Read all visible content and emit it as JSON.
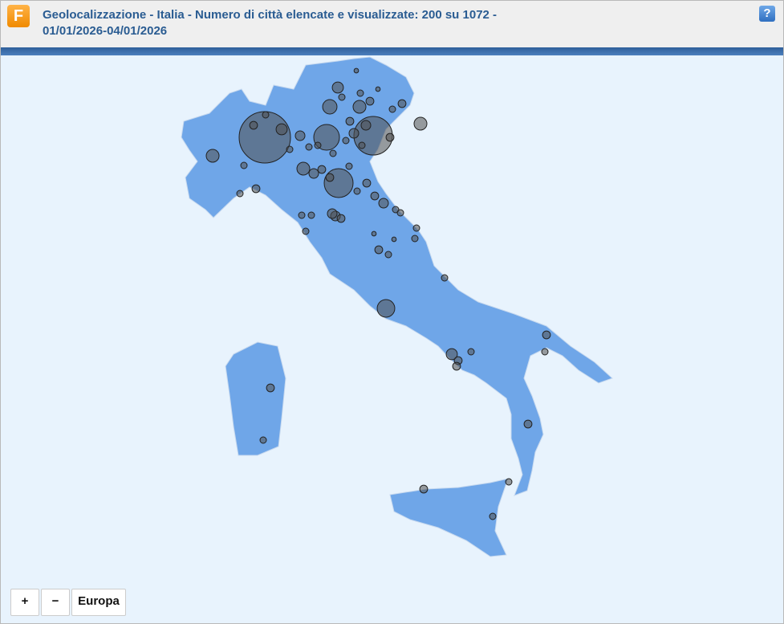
{
  "header": {
    "logo": "F",
    "title": [
      "Geolocalizzazione - Italia - Numero di città elencate e visualizzate: 200 su 1072 -",
      "01/01/2026-04/01/2026"
    ],
    "help": "?"
  },
  "map": {
    "markers": [
      256,
      144,
      64,
      81,
      30,
      20,
      16,
      16,
      16,
      9,
      12,
      16,
      9,
      6,
      9,
      6,
      12,
      6,
      4,
      9,
      4,
      9,
      6,
      6,
      4,
      6,
      4,
      4,
      4,
      4,
      4,
      9,
      6,
      6,
      4,
      6,
      9,
      4,
      4,
      4,
      4,
      2,
      6,
      4,
      4,
      12,
      6,
      6,
      4,
      6,
      4,
      6,
      6,
      4,
      4,
      6,
      4,
      2,
      2,
      6,
      6,
      4,
      4,
      2,
      4,
      4,
      4,
      4,
      4,
      4
    ]
  },
  "controls": [
    "+",
    "−",
    "Europa"
  ]
}
